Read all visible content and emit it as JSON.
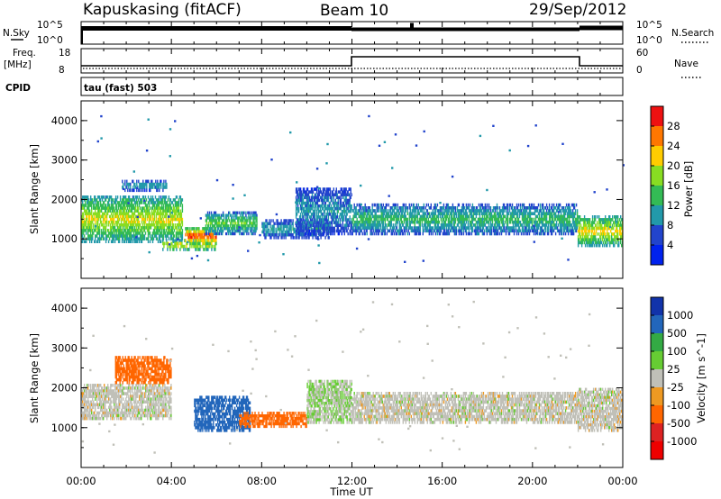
{
  "header": {
    "station": "Kapuskasing (fitACF)",
    "beam": "Beam 10",
    "date": "29/Sep/2012"
  },
  "strip": {
    "nsky_label": "N.Sky",
    "nsky_ticks": [
      "10^5",
      "10^0"
    ],
    "nsearch_label": "N.Search",
    "nsearch_ticks": [
      "10^5",
      "10^0"
    ],
    "freq_label": "Freq.",
    "freq_unit": "[MHz]",
    "freq_ticks": [
      "18",
      "8"
    ],
    "nave_label": "Nave",
    "nave_ticks": [
      "60",
      "0"
    ],
    "cpid_label": "CPID",
    "cpid_value": "tau (fast) 503"
  },
  "chart_data": [
    {
      "type": "heatmap",
      "panel": "power",
      "ylabel": "Slant Range [km]",
      "xlabel": "Time UT",
      "colorbar_label": "Power [dB]",
      "colorbar_ticks": [
        "28",
        "24",
        "20",
        "16",
        "12",
        "8",
        "4"
      ],
      "colorbar_colors": [
        "#ee1111",
        "#ff7700",
        "#ffcc00",
        "#88dd22",
        "#33bb55",
        "#2299aa",
        "#2244cc",
        "#0022ee"
      ],
      "yticks": [
        "4000",
        "3000",
        "2000",
        "1000"
      ],
      "ylim": [
        0,
        4500
      ],
      "xlim": [
        "00:00",
        "24:00"
      ],
      "bands": [
        {
          "t0": 0.0,
          "t1": 4.5,
          "r0": 900,
          "r1": 2100,
          "dB": 18
        },
        {
          "t0": 1.8,
          "t1": 3.8,
          "r0": 2200,
          "r1": 2500,
          "dB": 10
        },
        {
          "t0": 3.6,
          "t1": 6.0,
          "r0": 700,
          "r1": 1000,
          "dB": 20
        },
        {
          "t0": 4.6,
          "t1": 6.0,
          "r0": 850,
          "r1": 1300,
          "dB": 26
        },
        {
          "t0": 5.5,
          "t1": 7.8,
          "r0": 1100,
          "r1": 1700,
          "dB": 14
        },
        {
          "t0": 8.0,
          "t1": 11.0,
          "r0": 1000,
          "r1": 1500,
          "dB": 10
        },
        {
          "t0": 9.5,
          "t1": 12.0,
          "r0": 1100,
          "r1": 2300,
          "dB": 9
        },
        {
          "t0": 12.0,
          "t1": 22.0,
          "r0": 1100,
          "r1": 1900,
          "dB": 12
        },
        {
          "t0": 22.0,
          "t1": 24.0,
          "r0": 800,
          "r1": 1600,
          "dB": 19
        }
      ]
    },
    {
      "type": "heatmap",
      "panel": "velocity",
      "ylabel": "Slant Range [km]",
      "xlabel": "Time UT",
      "colorbar_label": "Velocity [m s^-1]",
      "colorbar_ticks": [
        "1000",
        "500",
        "100",
        "25",
        "-25",
        "-100",
        "-500",
        "-1000"
      ],
      "colorbar_colors": [
        "#1133aa",
        "#2266bb",
        "#33aa44",
        "#66cc33",
        "#c0c0b8",
        "#ee9922",
        "#ff6600",
        "#dd2222",
        "#ee0000"
      ],
      "yticks": [
        "4000",
        "3000",
        "2000",
        "1000"
      ],
      "ylim": [
        0,
        4500
      ],
      "xlim": [
        "00:00",
        "24:00"
      ],
      "xticks": [
        "00:00",
        "04:00",
        "08:00",
        "12:00",
        "16:00",
        "20:00",
        "00:00"
      ],
      "bands": [
        {
          "t0": 0.0,
          "t1": 4.0,
          "r0": 1200,
          "r1": 2100,
          "vel": 0
        },
        {
          "t0": 1.5,
          "t1": 4.0,
          "r0": 2100,
          "r1": 2800,
          "vel": -200
        },
        {
          "t0": 5.0,
          "t1": 7.5,
          "r0": 900,
          "r1": 1800,
          "vel": 150
        },
        {
          "t0": 7.0,
          "t1": 10.0,
          "r0": 1000,
          "r1": 1400,
          "vel": -150
        },
        {
          "t0": 10.0,
          "t1": 12.0,
          "r0": 1100,
          "r1": 2200,
          "vel": 20
        },
        {
          "t0": 12.0,
          "t1": 22.0,
          "r0": 1100,
          "r1": 1900,
          "vel": 0
        },
        {
          "t0": 22.0,
          "t1": 24.0,
          "r0": 900,
          "r1": 2000,
          "vel": 0
        }
      ]
    }
  ]
}
